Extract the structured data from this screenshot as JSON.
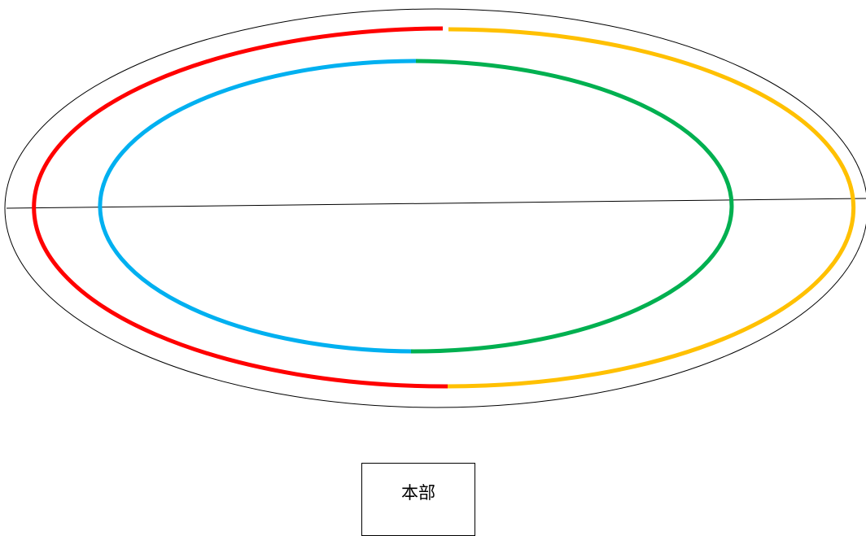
{
  "headquarters": {
    "label": "本部"
  },
  "colors": {
    "outline": "#000000",
    "outer_left": "#ff0000",
    "outer_right": "#ffc000",
    "inner_left": "#00b0f0",
    "inner_right": "#00b050"
  }
}
